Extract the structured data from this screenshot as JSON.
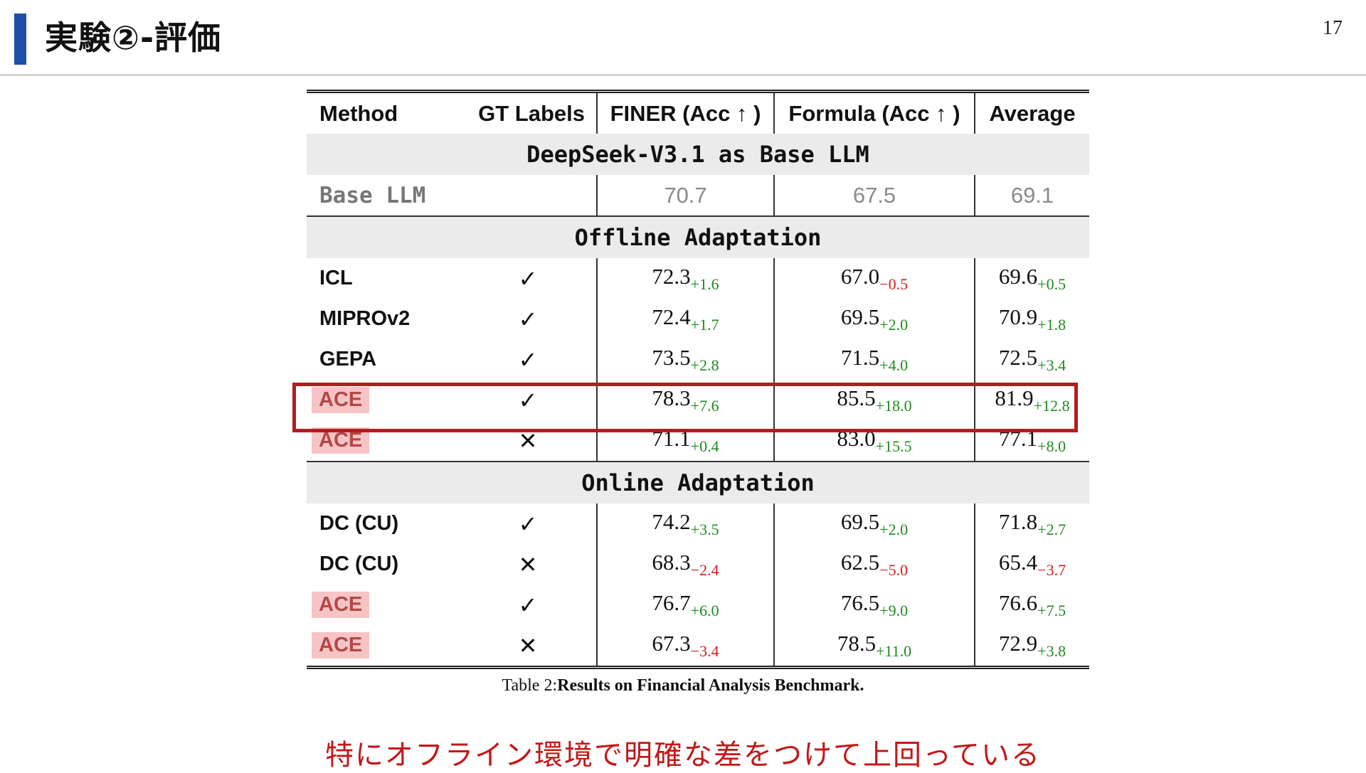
{
  "slide": {
    "title": "実験②-評価",
    "page_number": "17"
  },
  "table": {
    "headers": {
      "method": "Method",
      "gt": "GT Labels",
      "finer": "FINER (Acc ↑ )",
      "formula": "Formula (Acc ↑ )",
      "average": "Average"
    },
    "sections": [
      "DeepSeek-V3.1 as Base LLM",
      "Offline Adaptation",
      "Online Adaptation"
    ],
    "base": {
      "method": "Base LLM",
      "finer": "70.7",
      "formula": "67.5",
      "average": "69.1"
    },
    "rows": [
      {
        "method": "ICL",
        "gt": "✓",
        "finer": "72.3",
        "finer_d": "+1.6",
        "formula": "67.0",
        "formula_d": "−0.5",
        "avg": "69.6",
        "avg_d": "+0.5"
      },
      {
        "method": "MIPROv2",
        "gt": "✓",
        "finer": "72.4",
        "finer_d": "+1.7",
        "formula": "69.5",
        "formula_d": "+2.0",
        "avg": "70.9",
        "avg_d": "+1.8"
      },
      {
        "method": "GEPA",
        "gt": "✓",
        "finer": "73.5",
        "finer_d": "+2.8",
        "formula": "71.5",
        "formula_d": "+4.0",
        "avg": "72.5",
        "avg_d": "+3.4"
      },
      {
        "method": "ACE",
        "gt": "✓",
        "finer": "78.3",
        "finer_d": "+7.6",
        "formula": "85.5",
        "formula_d": "+18.0",
        "avg": "81.9",
        "avg_d": "+12.8"
      },
      {
        "method": "ACE",
        "gt": "✕",
        "finer": "71.1",
        "finer_d": "+0.4",
        "formula": "83.0",
        "formula_d": "+15.5",
        "avg": "77.1",
        "avg_d": "+8.0"
      },
      {
        "method": "DC (CU)",
        "gt": "✓",
        "finer": "74.2",
        "finer_d": "+3.5",
        "formula": "69.5",
        "formula_d": "+2.0",
        "avg": "71.8",
        "avg_d": "+2.7"
      },
      {
        "method": "DC (CU)",
        "gt": "✕",
        "finer": "68.3",
        "finer_d": "−2.4",
        "formula": "62.5",
        "formula_d": "−5.0",
        "avg": "65.4",
        "avg_d": "−3.7"
      },
      {
        "method": "ACE",
        "gt": "✓",
        "finer": "76.7",
        "finer_d": "+6.0",
        "formula": "76.5",
        "formula_d": "+9.0",
        "avg": "76.6",
        "avg_d": "+7.5"
      },
      {
        "method": "ACE",
        "gt": "✕",
        "finer": "67.3",
        "finer_d": "−3.4",
        "formula": "78.5",
        "formula_d": "+11.0",
        "avg": "72.9",
        "avg_d": "+3.8"
      }
    ],
    "caption_prefix": "Table 2:",
    "caption_bold": "Results on Financial Analysis Benchmark."
  },
  "note": "特にオフライン環境で明確な差をつけて上回っている",
  "colors": {
    "accent_bar": "#1d4fa8",
    "highlight_box": "#b31d1d",
    "positive_delta": "#1f8a1f",
    "negative_delta": "#d11d1d",
    "ace_badge_bg": "#f6c4c4",
    "note_text": "#c21818"
  }
}
